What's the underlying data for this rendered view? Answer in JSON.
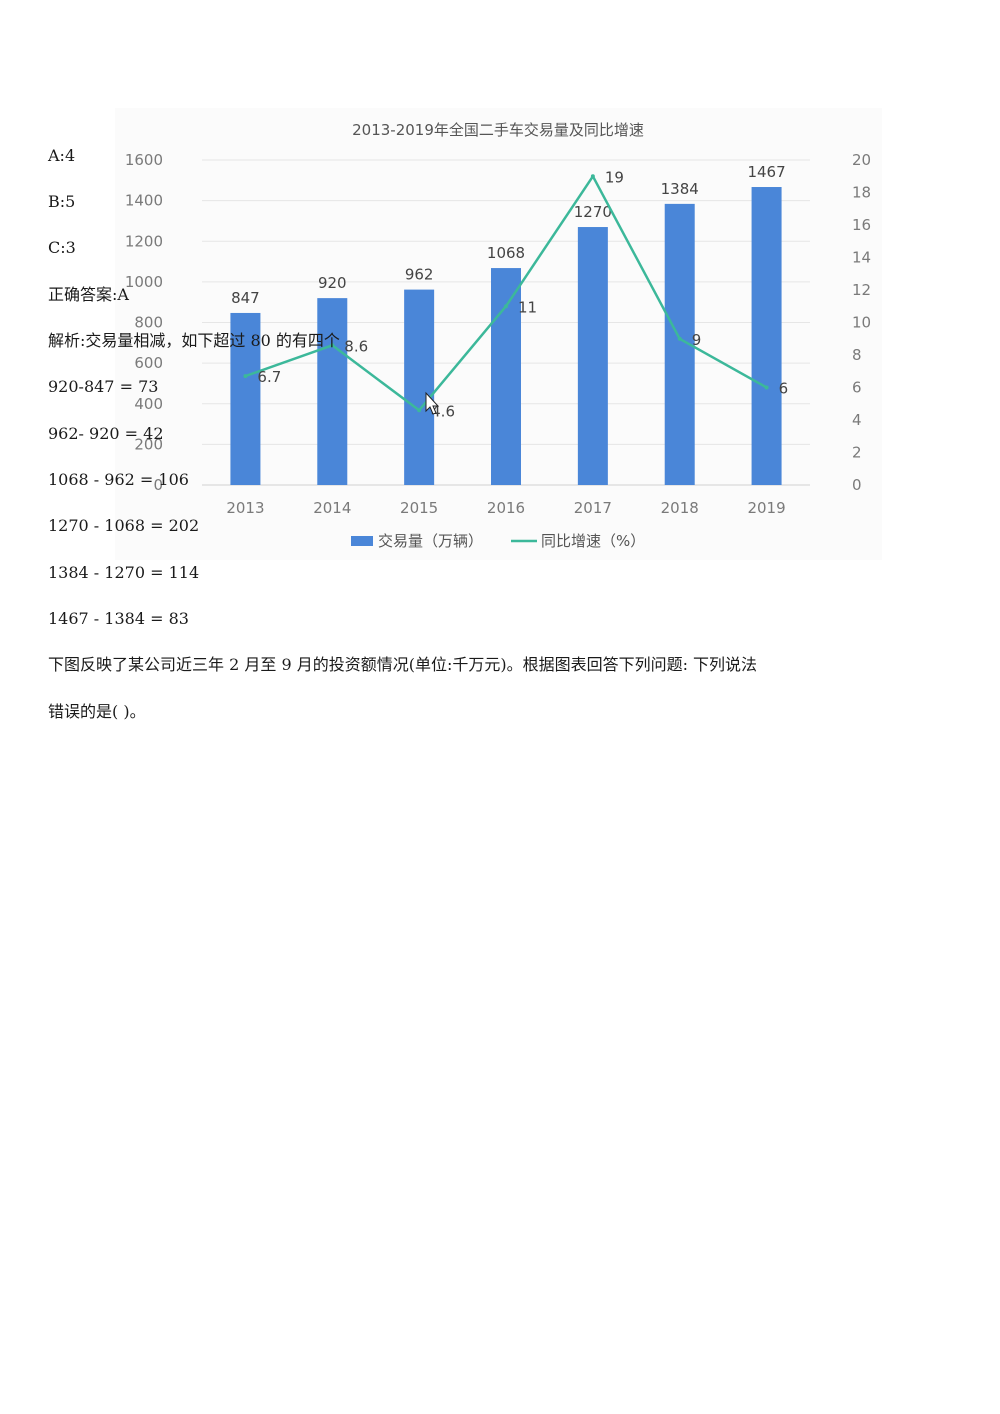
{
  "document": {
    "options": [
      "A:4",
      "B:5",
      "C:3"
    ],
    "answer": "正确答案:A",
    "analysis": "解析:交易量相减，如下超过 80 的有四个",
    "calculations": [
      "920-847 = 73",
      "962- 920 = 42",
      "1068 - 962 = 106",
      "1270 - 1068 = 202",
      "1384 - 1270 = 114",
      "1467 - 1384 = 83"
    ],
    "next_question": [
      "下图反映了某公司近三年 2 月至 9 月的投资额情况(单位:千万元)。根据图表回答下列问题: 下列说法",
      "错误的是( )。"
    ]
  },
  "chart_data": {
    "type": "bar",
    "title": "2013-2019年全国二手车交易量及同比增速",
    "categories": [
      "2013",
      "2014",
      "2015",
      "2016",
      "2017",
      "2018",
      "2019"
    ],
    "series": [
      {
        "name": "交易量（万辆）",
        "type": "bar",
        "axis": "left",
        "values": [
          847,
          920,
          962,
          1068,
          1270,
          1384,
          1467
        ],
        "labels": [
          "847",
          "920",
          "962",
          "1068",
          "1270",
          "1384",
          "1467"
        ]
      },
      {
        "name": "同比增速（%）",
        "type": "line",
        "axis": "right",
        "values": [
          6.7,
          8.6,
          4.6,
          11,
          19,
          9,
          6
        ],
        "labels": [
          "6.7",
          "8.6",
          "4.6",
          "11",
          "19",
          "9",
          "6"
        ]
      }
    ],
    "ylim_left": [
      0,
      1600
    ],
    "ylim_right": [
      0,
      20
    ],
    "yticks_left": [
      "0",
      "200",
      "400",
      "600",
      "800",
      "1000",
      "1200",
      "1400",
      "1600"
    ],
    "yticks_right": [
      "0",
      "2",
      "4",
      "6",
      "8",
      "10",
      "12",
      "14",
      "16",
      "18",
      "20"
    ],
    "grid": true,
    "legend_position": "bottom",
    "colors": {
      "bar": "#4a86d8",
      "line": "#3cb89a"
    }
  }
}
